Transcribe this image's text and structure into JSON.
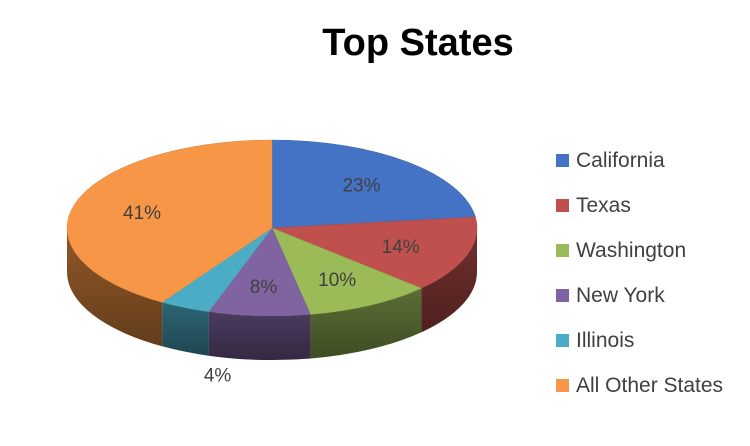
{
  "chart_data": {
    "type": "pie",
    "title": "Top States",
    "categories": [
      "California",
      "Texas",
      "Washington",
      "New York",
      "Illinois",
      "All Other States"
    ],
    "values": [
      23,
      14,
      10,
      8,
      4,
      41
    ],
    "data_labels": [
      "23%",
      "14%",
      "10%",
      "8%",
      "4%",
      "41%"
    ],
    "colors": [
      "#4472C4",
      "#C0504D",
      "#9BBB59",
      "#8064A2",
      "#4BACC6",
      "#F79646"
    ],
    "legend_position": "right",
    "style": "3d"
  }
}
